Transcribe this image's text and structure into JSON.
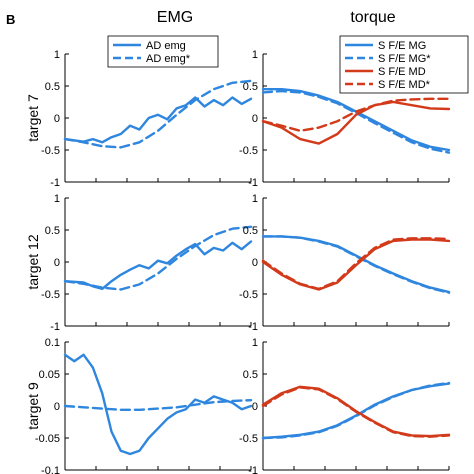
{
  "panel_letter": "B",
  "column_titles": [
    "EMG",
    "torque"
  ],
  "row_labels": [
    "target 7",
    "target 12",
    "target 9"
  ],
  "colors": {
    "blue": "#2f86de",
    "red": "#d23a1a",
    "axis": "#000000"
  },
  "legends": {
    "emg": [
      "AD emg",
      "AD emg*"
    ],
    "torque": [
      "S F/E MG",
      "S F/E MG*",
      "S F/E MD",
      "S F/E MD*"
    ]
  },
  "chart_data": [
    {
      "type": "line",
      "title": "EMG",
      "ylabel": "target 7",
      "xlim": [
        0,
        1
      ],
      "ylim": [
        -1,
        1
      ],
      "yticks": [
        "-1",
        "-0.5",
        "0",
        "0.5",
        "1"
      ],
      "series": [
        {
          "name": "AD emg",
          "color": "#2f86de",
          "style": "solid",
          "x": [
            0,
            0.1,
            0.15,
            0.2,
            0.25,
            0.3,
            0.35,
            0.4,
            0.45,
            0.5,
            0.55,
            0.6,
            0.65,
            0.7,
            0.75,
            0.8,
            0.85,
            0.9,
            0.95,
            1.0
          ],
          "y": [
            -0.33,
            -0.37,
            -0.33,
            -0.38,
            -0.3,
            -0.25,
            -0.12,
            -0.18,
            0.0,
            0.05,
            -0.02,
            0.15,
            0.2,
            0.32,
            0.18,
            0.28,
            0.2,
            0.32,
            0.22,
            0.3
          ]
        },
        {
          "name": "AD emg*",
          "color": "#2f86de",
          "style": "dashed",
          "x": [
            0,
            0.1,
            0.2,
            0.3,
            0.4,
            0.5,
            0.6,
            0.7,
            0.8,
            0.9,
            1.0
          ],
          "y": [
            -0.33,
            -0.38,
            -0.44,
            -0.46,
            -0.38,
            -0.2,
            0.05,
            0.28,
            0.45,
            0.55,
            0.58
          ]
        }
      ]
    },
    {
      "type": "line",
      "title": "torque",
      "ylabel": "",
      "xlim": [
        0,
        1
      ],
      "ylim": [
        -1,
        1
      ],
      "yticks": [
        "-1",
        "-0.5",
        "0",
        "0.5",
        "1"
      ],
      "series": [
        {
          "name": "S F/E MG",
          "color": "#2f86de",
          "style": "solid",
          "x": [
            0,
            0.1,
            0.2,
            0.3,
            0.4,
            0.5,
            0.6,
            0.7,
            0.8,
            0.9,
            1.0
          ],
          "y": [
            0.45,
            0.45,
            0.42,
            0.35,
            0.25,
            0.1,
            -0.05,
            -0.2,
            -0.35,
            -0.45,
            -0.5
          ]
        },
        {
          "name": "S F/E MG*",
          "color": "#2f86de",
          "style": "dashed",
          "x": [
            0,
            0.1,
            0.2,
            0.3,
            0.4,
            0.5,
            0.6,
            0.7,
            0.8,
            0.9,
            1.0
          ],
          "y": [
            0.4,
            0.42,
            0.4,
            0.33,
            0.23,
            0.08,
            -0.08,
            -0.23,
            -0.38,
            -0.48,
            -0.54
          ]
        },
        {
          "name": "S F/E MD",
          "color": "#d23a1a",
          "style": "solid",
          "x": [
            0,
            0.1,
            0.2,
            0.3,
            0.4,
            0.5,
            0.6,
            0.7,
            0.8,
            0.9,
            1.0
          ],
          "y": [
            -0.05,
            -0.15,
            -0.33,
            -0.4,
            -0.25,
            0.05,
            0.2,
            0.25,
            0.2,
            0.15,
            0.14
          ]
        },
        {
          "name": "S F/E MD*",
          "color": "#d23a1a",
          "style": "dashed",
          "x": [
            0,
            0.1,
            0.2,
            0.3,
            0.4,
            0.5,
            0.6,
            0.7,
            0.8,
            0.9,
            1.0
          ],
          "y": [
            -0.05,
            -0.12,
            -0.2,
            -0.15,
            -0.05,
            0.1,
            0.2,
            0.27,
            0.29,
            0.3,
            0.3
          ]
        }
      ]
    },
    {
      "type": "line",
      "title": "",
      "ylabel": "target 12",
      "xlim": [
        0,
        1
      ],
      "ylim": [
        -1,
        1
      ],
      "yticks": [
        "-1",
        "-0.5",
        "0",
        "0.5",
        "1"
      ],
      "series": [
        {
          "name": "AD emg",
          "color": "#2f86de",
          "style": "solid",
          "x": [
            0,
            0.1,
            0.15,
            0.2,
            0.25,
            0.3,
            0.35,
            0.4,
            0.45,
            0.5,
            0.55,
            0.6,
            0.65,
            0.7,
            0.75,
            0.8,
            0.85,
            0.9,
            0.95,
            1.0
          ],
          "y": [
            -0.3,
            -0.32,
            -0.38,
            -0.42,
            -0.3,
            -0.2,
            -0.12,
            -0.05,
            -0.1,
            0.02,
            -0.02,
            0.1,
            0.2,
            0.28,
            0.12,
            0.22,
            0.18,
            0.3,
            0.2,
            0.32
          ]
        },
        {
          "name": "AD emg*",
          "color": "#2f86de",
          "style": "dashed",
          "x": [
            0,
            0.1,
            0.2,
            0.3,
            0.4,
            0.5,
            0.6,
            0.7,
            0.8,
            0.9,
            1.0
          ],
          "y": [
            -0.3,
            -0.34,
            -0.4,
            -0.43,
            -0.35,
            -0.18,
            0.05,
            0.25,
            0.42,
            0.52,
            0.55
          ]
        }
      ]
    },
    {
      "type": "line",
      "title": "",
      "ylabel": "",
      "xlim": [
        0,
        1
      ],
      "ylim": [
        -1,
        1
      ],
      "yticks": [
        "-1",
        "-0.5",
        "0",
        "0.5",
        "1"
      ],
      "series": [
        {
          "name": "S F/E MG",
          "color": "#2f86de",
          "style": "solid",
          "x": [
            0,
            0.1,
            0.2,
            0.3,
            0.4,
            0.5,
            0.6,
            0.7,
            0.8,
            0.9,
            1.0
          ],
          "y": [
            0.4,
            0.4,
            0.38,
            0.33,
            0.25,
            0.1,
            -0.05,
            -0.18,
            -0.3,
            -0.4,
            -0.47
          ]
        },
        {
          "name": "S F/E MG*",
          "color": "#2f86de",
          "style": "dashed",
          "x": [
            0,
            0.1,
            0.2,
            0.3,
            0.4,
            0.5,
            0.6,
            0.7,
            0.8,
            0.9,
            1.0
          ],
          "y": [
            0.4,
            0.4,
            0.38,
            0.32,
            0.24,
            0.09,
            -0.06,
            -0.19,
            -0.31,
            -0.41,
            -0.48
          ]
        },
        {
          "name": "S F/E MD",
          "color": "#d23a1a",
          "style": "solid",
          "x": [
            0,
            0.1,
            0.2,
            0.3,
            0.4,
            0.5,
            0.6,
            0.7,
            0.8,
            0.9,
            1.0
          ],
          "y": [
            0.0,
            -0.2,
            -0.35,
            -0.43,
            -0.32,
            -0.05,
            0.2,
            0.33,
            0.35,
            0.35,
            0.33
          ]
        },
        {
          "name": "S F/E MD*",
          "color": "#d23a1a",
          "style": "dashed",
          "x": [
            0,
            0.1,
            0.2,
            0.3,
            0.4,
            0.5,
            0.6,
            0.7,
            0.8,
            0.9,
            1.0
          ],
          "y": [
            0.02,
            -0.18,
            -0.34,
            -0.42,
            -0.3,
            -0.02,
            0.22,
            0.35,
            0.37,
            0.37,
            0.36
          ]
        }
      ]
    },
    {
      "type": "line",
      "title": "",
      "ylabel": "target 9",
      "xlim": [
        0,
        1
      ],
      "ylim": [
        -0.1,
        0.1
      ],
      "yticks": [
        "-0.1",
        "-0.05",
        "0",
        "0.05",
        "0.1"
      ],
      "series": [
        {
          "name": "AD emg",
          "color": "#2f86de",
          "style": "solid",
          "x": [
            0,
            0.05,
            0.1,
            0.15,
            0.2,
            0.25,
            0.3,
            0.35,
            0.4,
            0.45,
            0.5,
            0.55,
            0.6,
            0.65,
            0.7,
            0.75,
            0.8,
            0.85,
            0.9,
            0.95,
            1.0
          ],
          "y": [
            0.08,
            0.07,
            0.08,
            0.06,
            0.02,
            -0.04,
            -0.07,
            -0.075,
            -0.07,
            -0.05,
            -0.035,
            -0.02,
            -0.01,
            -0.005,
            0.01,
            0.005,
            0.015,
            0.01,
            0.005,
            -0.005,
            0.0
          ]
        },
        {
          "name": "AD emg*",
          "color": "#2f86de",
          "style": "dashed",
          "x": [
            0,
            0.1,
            0.2,
            0.3,
            0.4,
            0.5,
            0.6,
            0.7,
            0.8,
            0.9,
            1.0
          ],
          "y": [
            0.0,
            -0.002,
            -0.004,
            -0.006,
            -0.006,
            -0.004,
            -0.002,
            0.002,
            0.006,
            0.008,
            0.009
          ]
        }
      ]
    },
    {
      "type": "line",
      "title": "",
      "ylabel": "",
      "xlim": [
        0,
        1
      ],
      "ylim": [
        -1,
        1
      ],
      "yticks": [
        "-1",
        "-0.5",
        "0",
        "0.5",
        "1"
      ],
      "series": [
        {
          "name": "S F/E MG",
          "color": "#2f86de",
          "style": "solid",
          "x": [
            0,
            0.1,
            0.2,
            0.3,
            0.4,
            0.5,
            0.6,
            0.7,
            0.8,
            0.9,
            1.0
          ],
          "y": [
            -0.5,
            -0.48,
            -0.45,
            -0.4,
            -0.3,
            -0.15,
            0.02,
            0.15,
            0.25,
            0.31,
            0.35
          ]
        },
        {
          "name": "S F/E MG*",
          "color": "#2f86de",
          "style": "dashed",
          "x": [
            0,
            0.1,
            0.2,
            0.3,
            0.4,
            0.5,
            0.6,
            0.7,
            0.8,
            0.9,
            1.0
          ],
          "y": [
            -0.5,
            -0.49,
            -0.46,
            -0.41,
            -0.31,
            -0.16,
            0.01,
            0.14,
            0.25,
            0.32,
            0.36
          ]
        },
        {
          "name": "S F/E MD",
          "color": "#d23a1a",
          "style": "solid",
          "x": [
            0,
            0.1,
            0.2,
            0.3,
            0.4,
            0.5,
            0.6,
            0.7,
            0.8,
            0.9,
            1.0
          ],
          "y": [
            0.02,
            0.2,
            0.3,
            0.27,
            0.12,
            -0.08,
            -0.25,
            -0.4,
            -0.46,
            -0.47,
            -0.45
          ]
        },
        {
          "name": "S F/E MD*",
          "color": "#d23a1a",
          "style": "dashed",
          "x": [
            0,
            0.1,
            0.2,
            0.3,
            0.4,
            0.5,
            0.6,
            0.7,
            0.8,
            0.9,
            1.0
          ],
          "y": [
            0.0,
            0.18,
            0.29,
            0.26,
            0.11,
            -0.09,
            -0.26,
            -0.41,
            -0.47,
            -0.48,
            -0.46
          ]
        }
      ]
    }
  ]
}
